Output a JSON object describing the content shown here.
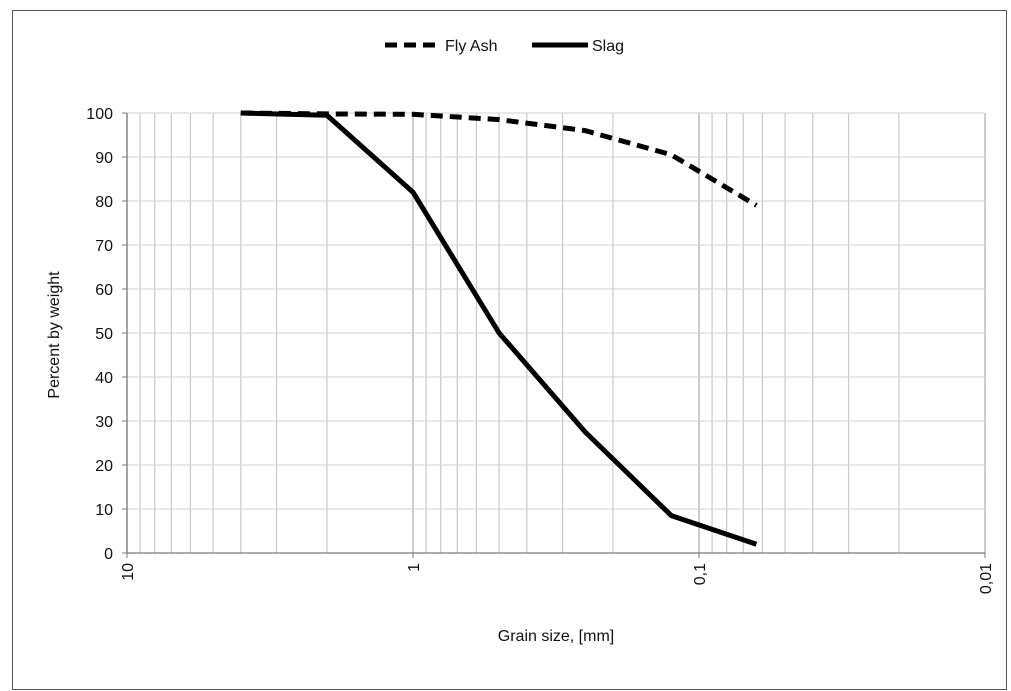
{
  "chart_data": {
    "type": "line",
    "title": "",
    "xlabel": "Grain size, [mm]",
    "ylabel": "Percent by weight",
    "x_scale": "log",
    "x_reversed": true,
    "xlim": [
      10,
      0.01
    ],
    "ylim": [
      0,
      100
    ],
    "x_tick_labels": [
      "10",
      "1",
      "0,1",
      "0,01"
    ],
    "x_ticks": [
      10,
      1,
      0.1,
      0.01
    ],
    "y_ticks": [
      0,
      10,
      20,
      30,
      40,
      50,
      60,
      70,
      80,
      90,
      100
    ],
    "y_tick_labels": [
      "0",
      "10",
      "20",
      "30",
      "40",
      "50",
      "60",
      "70",
      "80",
      "90",
      "100"
    ],
    "grid": "x minor+major, y major",
    "legend_position": "top-center",
    "series": [
      {
        "name": "Fly Ash",
        "line_style": "dashed",
        "color": "#000000",
        "x": [
          4,
          2,
          1,
          0.5,
          0.25,
          0.125,
          0.063
        ],
        "y": [
          100,
          99.8,
          99.7,
          98.5,
          96,
          90.5,
          79
        ]
      },
      {
        "name": "Slag",
        "line_style": "solid",
        "color": "#000000",
        "x": [
          4,
          2,
          1,
          0.5,
          0.25,
          0.125,
          0.063
        ],
        "y": [
          100,
          99.5,
          82,
          50,
          27.5,
          8.5,
          2
        ]
      }
    ]
  }
}
